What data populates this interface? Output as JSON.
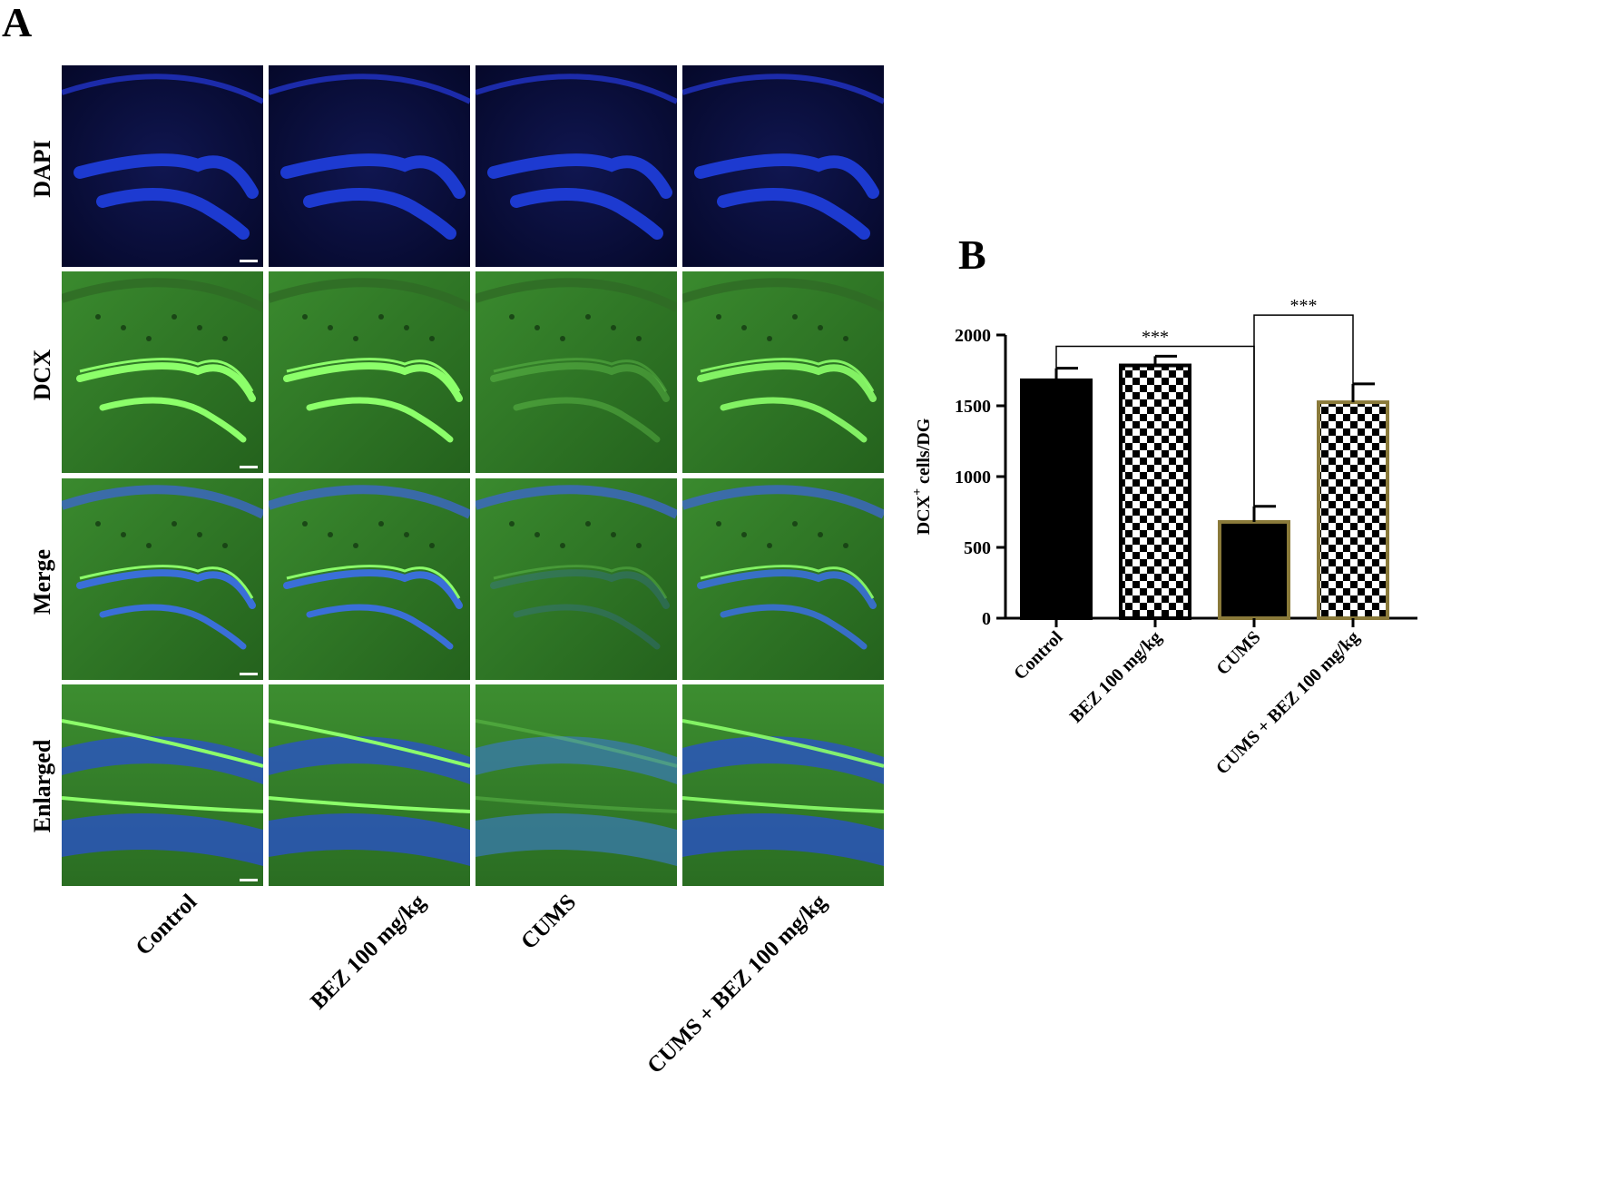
{
  "panel_a": {
    "letter": "A",
    "row_labels": [
      "DAPI",
      "DCX",
      "Merge",
      "Enlarged"
    ],
    "column_labels": [
      "Control",
      "BEZ 100 mg/kg",
      "CUMS",
      "CUMS + BEZ 100 mg/kg"
    ],
    "image_colors": {
      "dapi_background": "#0a0e3a",
      "dapi_layer": "#1f3fe0",
      "dcx_background": "#2f7a26",
      "dcx_layer": "#8cff6a",
      "merge_layer": "#3a6fd8"
    }
  },
  "panel_b": {
    "letter": "B"
  },
  "chart_data": {
    "type": "bar",
    "categories": [
      "Control",
      "BEZ 100 mg/kg",
      "CUMS",
      "CUMS + BEZ 100 mg/kg"
    ],
    "values": [
      1680,
      1785,
      680,
      1525
    ],
    "errors": [
      85,
      65,
      110,
      130
    ],
    "fills": [
      "solid",
      "checker",
      "solid",
      "checker"
    ],
    "bar_fill_color": "#000000",
    "bar_border_colors": [
      "#000000",
      "#000000",
      "#8a7a3a",
      "#8a7a3a"
    ],
    "ylabel": "DCX",
    "ylabel_sup": "+",
    "ylabel_suffix": " cells/DG",
    "ylim": [
      0,
      2000
    ],
    "yticks": [
      0,
      500,
      1000,
      1500,
      2000
    ],
    "significance": [
      {
        "from": 0,
        "to": 2,
        "label": "***"
      },
      {
        "from": 2,
        "to": 3,
        "label": "***"
      }
    ],
    "grid": false
  }
}
